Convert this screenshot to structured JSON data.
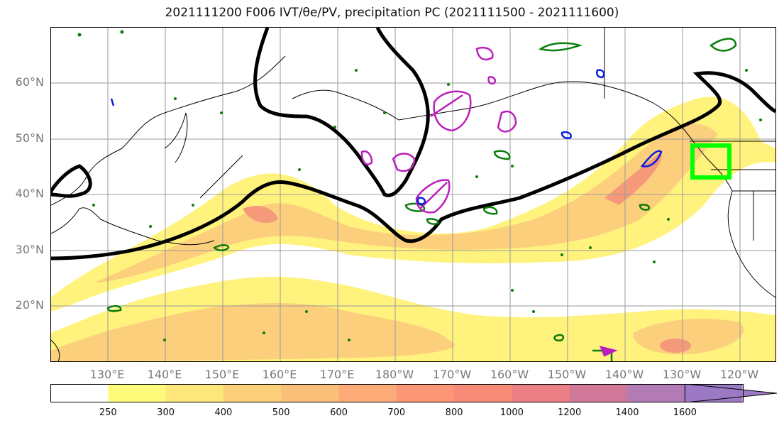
{
  "title": "2021111200 F006 IVT/θe/PV, precipitation PC (2021111500 - 2021111600)",
  "lat_labels": [
    "60°N",
    "50°N",
    "40°N",
    "30°N",
    "20°N"
  ],
  "lon_labels": [
    "130°E",
    "140°E",
    "150°E",
    "160°E",
    "170°E",
    "180°W",
    "170°W",
    "160°W",
    "150°W",
    "140°W",
    "130°W",
    "120°W"
  ],
  "colorbar": {
    "levels": [
      "250",
      "300",
      "400",
      "500",
      "600",
      "700",
      "800",
      "1000",
      "1200",
      "1400",
      "1600"
    ],
    "colors": [
      "#ffffff",
      "#fffb7a",
      "#fde77a",
      "#fcd07a",
      "#fcbf7a",
      "#fcab78",
      "#fc9676",
      "#f88a78",
      "#ec7f86",
      "#d07898",
      "#b27bb6",
      "#9b79c4"
    ]
  },
  "colors": {
    "jet_contour": "#000000",
    "pv_contour": "#0a7d0a",
    "negative_contour": "#0b1ee0",
    "theta_contour": "#bb1ebb",
    "target_box": "#00ff00"
  }
}
